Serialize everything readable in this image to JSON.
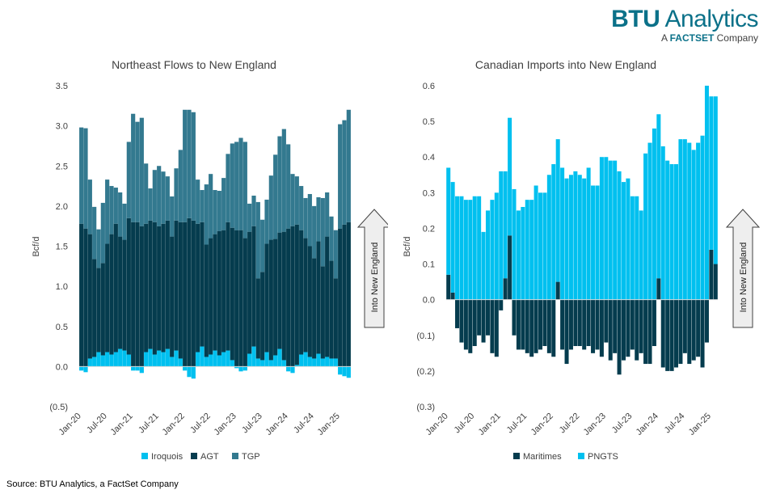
{
  "logo": {
    "brand_bold": "BTU",
    "brand_rest": " Analytics",
    "sub_prefix": "A ",
    "sub_brand": "FACTSET",
    "sub_suffix": " Company"
  },
  "source": "Source: BTU Analytics, a FactSet Company",
  "colors": {
    "Iroquois": "#00c0ef",
    "AGT": "#053c4e",
    "TGP": "#33798f",
    "Maritimes": "#053c4e",
    "PNGTS": "#00c0ef"
  },
  "chart_data": [
    {
      "type": "bar",
      "stacked": true,
      "title": "Northeast Flows to New England",
      "ylabel": "Bcf/d",
      "ylim": [
        -0.5,
        3.5
      ],
      "yticks": [
        "(0.5)",
        "0.0",
        "0.5",
        "1.0",
        "1.5",
        "2.0",
        "2.5",
        "3.0",
        "3.5"
      ],
      "ytick_values": [
        -0.5,
        0,
        0.5,
        1.0,
        1.5,
        2.0,
        2.5,
        3.0,
        3.5
      ],
      "xticks": [
        "Jan-20",
        "Jul-20",
        "Jan-21",
        "Jul-21",
        "Jan-22",
        "Jul-22",
        "Jan-23",
        "Jul-23",
        "Jan-24",
        "Jul-24",
        "Jan-25"
      ],
      "grid": false,
      "legend": "bottom",
      "annotation": "Into New England",
      "series": [
        {
          "name": "Iroquois",
          "values": [
            -0.05,
            -0.07,
            0.1,
            0.12,
            0.18,
            0.14,
            0.18,
            0.15,
            0.18,
            0.22,
            0.2,
            0.15,
            -0.05,
            -0.05,
            -0.08,
            0.18,
            0.22,
            0.15,
            0.2,
            0.18,
            0.22,
            0.12,
            0.2,
            0.1,
            -0.05,
            -0.13,
            -0.15,
            0.18,
            0.25,
            0.12,
            0.15,
            0.2,
            0.14,
            0.18,
            0.2,
            0.08,
            -0.02,
            -0.06,
            -0.05,
            0.16,
            0.25,
            0.1,
            0.08,
            0.18,
            0.08,
            0.14,
            0.22,
            0.08,
            -0.06,
            -0.08,
            0.02,
            0.15,
            0.18,
            0.12,
            0.1,
            0.16,
            0.1,
            0.12,
            0.1,
            0.1,
            -0.1,
            -0.12,
            -0.14
          ]
        },
        {
          "name": "AGT",
          "values": [
            1.78,
            1.72,
            1.55,
            1.22,
            1.05,
            1.15,
            1.35,
            1.5,
            1.6,
            1.4,
            1.38,
            1.7,
            1.8,
            1.8,
            1.75,
            1.6,
            1.6,
            1.65,
            1.55,
            1.6,
            1.6,
            1.5,
            1.62,
            1.7,
            1.8,
            1.85,
            1.82,
            1.6,
            1.55,
            1.4,
            1.45,
            1.45,
            1.55,
            1.52,
            1.6,
            1.65,
            1.7,
            1.7,
            1.6,
            1.52,
            1.5,
            1.0,
            1.1,
            1.35,
            1.5,
            1.45,
            1.45,
            1.6,
            1.72,
            1.75,
            1.75,
            1.55,
            1.42,
            1.38,
            1.25,
            1.4,
            1.15,
            1.5,
            1.22,
            1.0,
            1.72,
            1.77,
            1.8
          ]
        },
        {
          "name": "TGP",
          "values": [
            1.2,
            1.25,
            0.68,
            0.65,
            0.48,
            0.75,
            0.8,
            0.6,
            0.45,
            0.55,
            0.45,
            0.95,
            1.35,
            1.25,
            1.35,
            0.75,
            0.4,
            0.65,
            0.75,
            0.65,
            0.55,
            0.5,
            0.65,
            0.9,
            1.4,
            1.35,
            1.35,
            0.55,
            0.4,
            0.75,
            0.8,
            0.55,
            0.5,
            0.65,
            0.85,
            1.05,
            1.1,
            1.15,
            1.2,
            0.35,
            0.38,
            0.95,
            0.65,
            0.55,
            0.8,
            1.05,
            1.2,
            1.28,
            1.05,
            0.65,
            0.6,
            0.55,
            0.5,
            0.65,
            0.65,
            0.55,
            0.85,
            0.55,
            0.55,
            0.6,
            1.3,
            1.3,
            1.4
          ]
        }
      ]
    },
    {
      "type": "bar",
      "stacked": true,
      "title": "Canadian Imports into New England",
      "ylabel": "Bcf/d",
      "ylim": [
        -0.3,
        0.6
      ],
      "yticks": [
        "(0.3)",
        "(0.2)",
        "(0.1)",
        "0.0",
        "0.1",
        "0.2",
        "0.3",
        "0.4",
        "0.5",
        "0.6"
      ],
      "ytick_values": [
        -0.3,
        -0.2,
        -0.1,
        0,
        0.1,
        0.2,
        0.3,
        0.4,
        0.5,
        0.6
      ],
      "xticks": [
        "Jan-20",
        "Jul-20",
        "Jan-21",
        "Jul-21",
        "Jan-22",
        "Jul-22",
        "Jan-23",
        "Jul-23",
        "Jan-24",
        "Jul-24",
        "Jan-25"
      ],
      "grid": false,
      "legend": "bottom",
      "annotation": "Into New England",
      "series": [
        {
          "name": "Maritimes",
          "values": [
            0.07,
            0.02,
            -0.08,
            -0.12,
            -0.14,
            -0.15,
            -0.13,
            -0.1,
            -0.12,
            -0.1,
            -0.15,
            -0.16,
            -0.03,
            0.06,
            0.18,
            -0.1,
            -0.14,
            -0.14,
            -0.15,
            -0.16,
            -0.15,
            -0.14,
            -0.13,
            -0.15,
            -0.16,
            0.05,
            -0.14,
            -0.18,
            -0.14,
            -0.13,
            -0.13,
            -0.14,
            -0.13,
            -0.15,
            -0.14,
            -0.16,
            -0.12,
            -0.17,
            -0.15,
            -0.21,
            -0.17,
            -0.16,
            -0.14,
            -0.17,
            -0.15,
            -0.18,
            -0.18,
            -0.13,
            0.06,
            -0.19,
            -0.2,
            -0.2,
            -0.19,
            -0.18,
            -0.15,
            -0.18,
            -0.17,
            -0.16,
            -0.19,
            -0.12,
            0.14,
            0.1
          ]
        },
        {
          "name": "PNGTS",
          "values": [
            0.3,
            0.31,
            0.29,
            0.29,
            0.28,
            0.28,
            0.29,
            0.29,
            0.19,
            0.25,
            0.28,
            0.3,
            0.36,
            0.3,
            0.33,
            0.31,
            0.25,
            0.26,
            0.28,
            0.28,
            0.32,
            0.3,
            0.3,
            0.35,
            0.38,
            0.4,
            0.37,
            0.34,
            0.35,
            0.36,
            0.35,
            0.34,
            0.37,
            0.32,
            0.32,
            0.4,
            0.4,
            0.39,
            0.39,
            0.36,
            0.33,
            0.34,
            0.29,
            0.29,
            0.25,
            0.41,
            0.44,
            0.48,
            0.46,
            0.43,
            0.39,
            0.38,
            0.38,
            0.45,
            0.45,
            0.44,
            0.42,
            0.44,
            0.46,
            0.6,
            0.43,
            0.47
          ]
        }
      ]
    }
  ]
}
